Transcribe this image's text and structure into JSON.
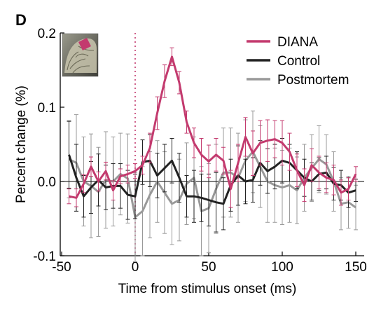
{
  "panel_label": "D",
  "chart_data": {
    "type": "line",
    "xlabel": "Time from stimulus onset (ms)",
    "ylabel": "Percent change (%)",
    "xlim": [
      -50,
      150
    ],
    "ylim": [
      -0.1,
      0.2
    ],
    "x_ticks": [
      -50,
      0,
      50,
      100,
      150
    ],
    "x_tick_labels": [
      "-50",
      "0",
      "50",
      "100",
      "150"
    ],
    "y_ticks": [
      -0.1,
      0,
      0.1,
      0.2
    ],
    "y_tick_labels": [
      "-0.1",
      "0.0",
      "0.1",
      "0.2"
    ],
    "zero_line": true,
    "stimulus_onset_line_x": 0,
    "legend_position": "top-right",
    "x": [
      -45,
      -40,
      -35,
      -30,
      -25,
      -20,
      -15,
      -10,
      -5,
      0,
      5,
      10,
      15,
      20,
      25,
      30,
      35,
      40,
      45,
      50,
      55,
      60,
      65,
      70,
      75,
      80,
      85,
      90,
      95,
      100,
      105,
      110,
      115,
      120,
      125,
      130,
      135,
      140,
      145,
      150
    ],
    "series": [
      {
        "name": "DIANA",
        "color": "#c33a6e",
        "values": [
          -0.02,
          -0.022,
          -0.003,
          0.02,
          0.0,
          0.014,
          -0.012,
          0.007,
          0.01,
          0.014,
          0.022,
          0.045,
          0.092,
          0.135,
          0.168,
          0.133,
          0.08,
          0.052,
          0.036,
          0.027,
          0.036,
          0.028,
          -0.01,
          0.025,
          0.06,
          0.038,
          0.052,
          0.055,
          0.057,
          0.052,
          0.04,
          0.015,
          -0.005,
          0.022,
          0.012,
          0.005,
          0.002,
          -0.015,
          -0.01,
          0.01
        ],
        "errors": [
          0.01,
          0.012,
          0.012,
          0.013,
          0.013,
          0.012,
          0.013,
          0.01,
          0.012,
          0.01,
          0.012,
          0.02,
          0.022,
          0.022,
          0.012,
          0.015,
          0.015,
          0.02,
          0.022,
          0.022,
          0.022,
          0.018,
          0.025,
          0.025,
          0.026,
          0.03,
          0.03,
          0.028,
          0.025,
          0.03,
          0.025,
          0.022,
          0.022,
          0.022,
          0.022,
          0.02,
          0.02,
          0.017,
          0.015,
          0.01
        ]
      },
      {
        "name": "Control",
        "color": "#222222",
        "values": [
          0.036,
          0.005,
          -0.02,
          -0.008,
          0.002,
          -0.008,
          -0.006,
          -0.006,
          -0.018,
          -0.02,
          0.026,
          0.028,
          0.008,
          0.018,
          0.028,
          0.005,
          -0.02,
          -0.02,
          -0.022,
          -0.025,
          -0.028,
          -0.03,
          -0.005,
          0.008,
          0.0,
          0.002,
          0.025,
          0.014,
          0.02,
          0.028,
          0.025,
          0.015,
          0.005,
          0.0,
          0.01,
          0.012,
          -0.003,
          -0.005,
          -0.015,
          -0.012
        ],
        "errors": [
          0.045,
          0.045,
          0.028,
          0.035,
          0.035,
          0.03,
          0.03,
          0.03,
          0.033,
          0.03,
          0.03,
          0.035,
          0.03,
          0.032,
          0.03,
          0.033,
          0.028,
          0.035,
          0.032,
          0.035,
          0.04,
          0.035,
          0.035,
          0.04,
          0.03,
          0.03,
          0.03,
          0.03,
          0.03,
          0.03,
          0.025,
          0.025,
          0.025,
          0.025,
          0.022,
          0.022,
          0.022,
          0.02,
          0.02,
          0.015
        ]
      },
      {
        "name": "Postmortem",
        "color": "#999999",
        "values": [
          0.03,
          0.025,
          0.0,
          -0.006,
          -0.014,
          0.002,
          0.0,
          0.01,
          0.004,
          -0.048,
          -0.04,
          -0.018,
          0.0,
          -0.015,
          -0.03,
          -0.025,
          -0.003,
          0.005,
          -0.04,
          -0.036,
          -0.01,
          0.012,
          0.012,
          0.005,
          0.028,
          0.04,
          0.02,
          0.0,
          -0.005,
          -0.008,
          -0.005,
          -0.012,
          0.005,
          0.018,
          0.03,
          0.023,
          0.0,
          -0.03,
          -0.028,
          -0.035
        ],
        "errors": [
          0.052,
          0.065,
          0.06,
          0.07,
          0.06,
          0.065,
          0.06,
          0.055,
          0.06,
          0.06,
          0.06,
          0.058,
          0.055,
          0.055,
          0.055,
          0.055,
          0.055,
          0.055,
          0.06,
          0.06,
          0.06,
          0.06,
          0.06,
          0.06,
          0.055,
          0.055,
          0.055,
          0.055,
          0.05,
          0.05,
          0.05,
          0.045,
          0.045,
          0.045,
          0.045,
          0.04,
          0.04,
          0.035,
          0.035,
          0.03
        ]
      }
    ]
  }
}
